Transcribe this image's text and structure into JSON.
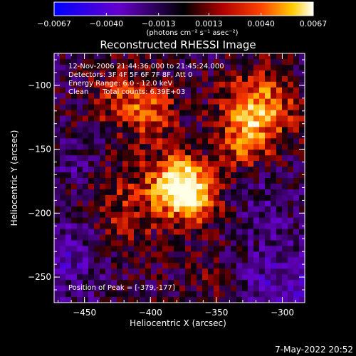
{
  "chart_data": {
    "type": "heatmap",
    "title": "Reconstructed RHESSI Image",
    "xlabel": "Heliocentric X (arcsec)",
    "ylabel": "Heliocentric Y (arcsec)",
    "xlim": [
      -473,
      -283
    ],
    "ylim": [
      -270,
      -75
    ],
    "xticks": [
      -450,
      -400,
      -350,
      -300
    ],
    "yticks": [
      -100,
      -150,
      -200,
      -250
    ],
    "colorbar": {
      "colormap": "hot with violet/blue negatives",
      "min": -0.0067,
      "max": 0.0067,
      "ticks": [
        "-0.0067",
        "-0.0040",
        "-0.0013",
        "0.0013",
        "0.0040",
        "0.0067"
      ],
      "units": "(photons cm⁻² s⁻¹ asec⁻²)"
    },
    "annotations": {
      "time_range": "12-Nov-2006 21:44:36.000 to 21:45:24.000",
      "detectors": "Detectors: 3F 4F 5F 6F 7F 8F, Att 0",
      "energy_range": "Energy Range: 6.0 - 12.0 keV",
      "algorithm": "Clean",
      "total_counts": "Total counts: 6.39E+03",
      "peak": "Position of Peak = [-379,-177]"
    },
    "peak_position": [
      -379,
      -177
    ],
    "sources": [
      {
        "x": -379,
        "y": -177,
        "sigma": 16,
        "amp": 1.0
      },
      {
        "x": -368,
        "y": -190,
        "sigma": 14,
        "amp": 0.55
      },
      {
        "x": -318,
        "y": -118,
        "sigma": 20,
        "amp": 0.75
      },
      {
        "x": -330,
        "y": -145,
        "sigma": 14,
        "amp": 0.45
      },
      {
        "x": -420,
        "y": -110,
        "sigma": 18,
        "amp": 0.45
      },
      {
        "x": -395,
        "y": -125,
        "sigma": 14,
        "amp": 0.4
      },
      {
        "x": -430,
        "y": -185,
        "sigma": 22,
        "amp": 0.3
      },
      {
        "x": -420,
        "y": -220,
        "sigma": 20,
        "amp": 0.25
      },
      {
        "x": -352,
        "y": -250,
        "sigma": 16,
        "amp": 0.2
      },
      {
        "x": -460,
        "y": -230,
        "sigma": 26,
        "amp": -0.35
      },
      {
        "x": -455,
        "y": -160,
        "sigma": 14,
        "amp": -0.25
      },
      {
        "x": -300,
        "y": -255,
        "sigma": 26,
        "amp": -0.35
      },
      {
        "x": -310,
        "y": -190,
        "sigma": 14,
        "amp": -0.18
      }
    ]
  },
  "footer": {
    "date": "7-May-2022 20:52"
  }
}
